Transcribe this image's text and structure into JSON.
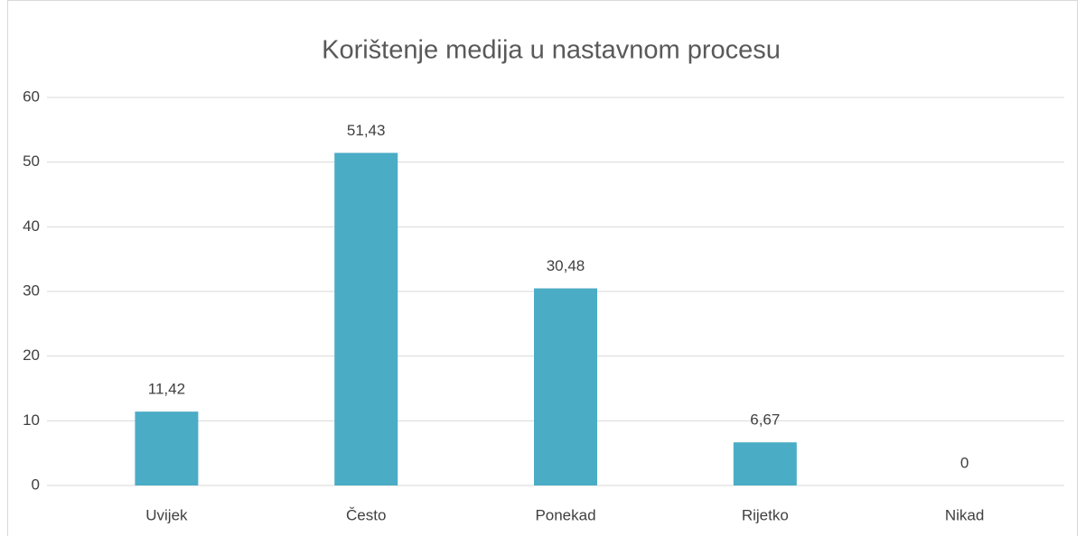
{
  "chart_data": {
    "type": "bar",
    "title": "Korištenje medija u nastavnom procesu",
    "categories": [
      "Uvijek",
      "Često",
      "Ponekad",
      "Rijetko",
      "Nikad"
    ],
    "values": [
      11.42,
      51.43,
      30.48,
      6.67,
      0
    ],
    "value_labels": [
      "11,42",
      "51,43",
      "30,48",
      "6,67",
      "0"
    ],
    "color": "#4bacc6",
    "ylim": [
      0,
      60
    ],
    "yticks": [
      0,
      10,
      20,
      30,
      40,
      50,
      60
    ],
    "grid": true
  }
}
